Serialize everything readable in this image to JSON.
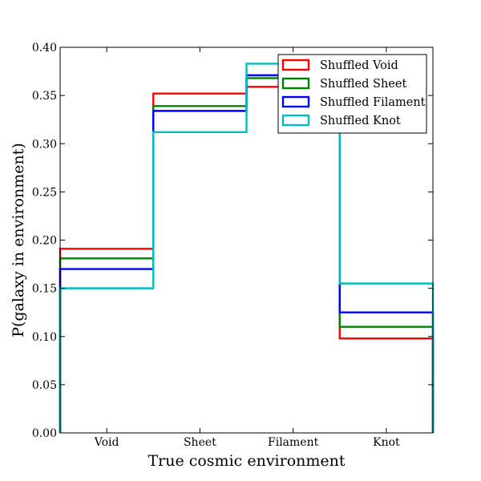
{
  "chart_data": {
    "type": "step",
    "categories": [
      "Void",
      "Sheet",
      "Filament",
      "Knot"
    ],
    "xlabel": "True cosmic environment",
    "ylabel": "P(galaxy in environment)",
    "ylim": [
      0.0,
      0.4
    ],
    "yticks": [
      "0.00",
      "0.05",
      "0.10",
      "0.15",
      "0.20",
      "0.25",
      "0.30",
      "0.35",
      "0.40"
    ],
    "grid": false,
    "legend_position": "top-right",
    "series": [
      {
        "name": "Shuffled Void",
        "color": "#ff0000",
        "values": [
          0.191,
          0.352,
          0.359,
          0.098
        ]
      },
      {
        "name": "Shuffled Sheet",
        "color": "#008000",
        "values": [
          0.181,
          0.339,
          0.368,
          0.11
        ]
      },
      {
        "name": "Shuffled Filament",
        "color": "#0000ff",
        "values": [
          0.17,
          0.334,
          0.371,
          0.125
        ]
      },
      {
        "name": "Shuffled Knot",
        "color": "#00bfbf",
        "values": [
          0.15,
          0.312,
          0.383,
          0.155
        ]
      }
    ]
  }
}
